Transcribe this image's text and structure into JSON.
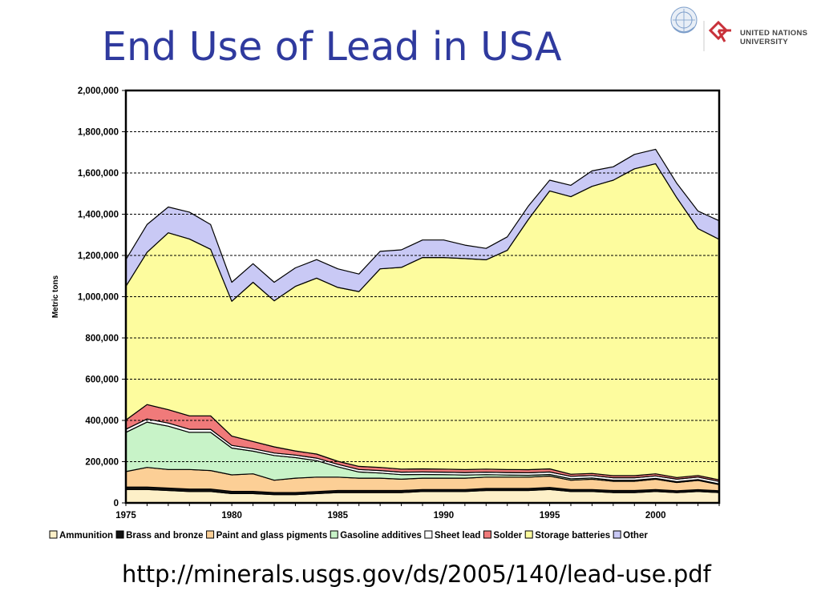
{
  "slide": {
    "title": "End Use of Lead in USA",
    "source_url": "http://minerals.usgs.gov/ds/2005/140/lead-use.pdf",
    "logo": {
      "name_line1": "UNITED NATIONS",
      "name_line2": "UNIVERSITY",
      "emblem": "un-emblem-icon",
      "mark": "unu-mark-icon"
    }
  },
  "chart_data": {
    "type": "area",
    "stacked": true,
    "title": "",
    "xlabel": "",
    "ylabel": "Metric tons",
    "xlim": [
      1975,
      2003
    ],
    "ylim": [
      0,
      2000000
    ],
    "x_ticks": [
      1975,
      1980,
      1985,
      1990,
      1995,
      2000
    ],
    "x_tick_labels": [
      "1975",
      "1980",
      "1985",
      "1990",
      "1995",
      "2000"
    ],
    "y_ticks": [
      0,
      200000,
      400000,
      600000,
      800000,
      1000000,
      1200000,
      1400000,
      1600000,
      1800000,
      2000000
    ],
    "y_tick_labels": [
      "0",
      "200,000",
      "400,000",
      "600,000",
      "800,000",
      "1,000,000",
      "1,200,000",
      "1,400,000",
      "1,600,000",
      "1,800,000",
      "2,000,000"
    ],
    "gridlines": {
      "horizontal": true,
      "style": "dashed"
    },
    "legend_position": "bottom",
    "x": [
      1975,
      1976,
      1977,
      1978,
      1979,
      1980,
      1981,
      1982,
      1983,
      1984,
      1985,
      1986,
      1987,
      1988,
      1989,
      1990,
      1991,
      1992,
      1993,
      1994,
      1995,
      1996,
      1997,
      1998,
      1999,
      2000,
      2001,
      2002,
      2003
    ],
    "series": [
      {
        "name": "Ammunition",
        "color": "#fdf0c8",
        "edge": "#000000",
        "values": [
          65000,
          65000,
          60000,
          55000,
          55000,
          45000,
          45000,
          40000,
          40000,
          45000,
          50000,
          50000,
          50000,
          50000,
          55000,
          55000,
          55000,
          60000,
          60000,
          60000,
          65000,
          55000,
          55000,
          50000,
          50000,
          55000,
          50000,
          55000,
          50000
        ]
      },
      {
        "name": "Brass and bronze",
        "color": "#111111",
        "edge": "#000000",
        "values": [
          12000,
          12000,
          12000,
          12000,
          12000,
          11000,
          11000,
          10000,
          10000,
          10000,
          10000,
          10000,
          10000,
          10000,
          10000,
          10000,
          10000,
          10000,
          10000,
          10000,
          10000,
          10000,
          10000,
          10000,
          10000,
          10000,
          9000,
          9000,
          9000
        ]
      },
      {
        "name": "Paint and glass pigments",
        "color": "#fccf96",
        "edge": "#000000",
        "values": [
          75000,
          95000,
          90000,
          95000,
          90000,
          80000,
          85000,
          60000,
          70000,
          70000,
          65000,
          60000,
          60000,
          55000,
          55000,
          55000,
          55000,
          55000,
          55000,
          55000,
          55000,
          45000,
          50000,
          45000,
          45000,
          50000,
          40000,
          45000,
          30000
        ]
      },
      {
        "name": "Gasoline additives",
        "color": "#c8f3c8",
        "edge": "#000000",
        "values": [
          190000,
          220000,
          210000,
          180000,
          185000,
          130000,
          110000,
          120000,
          100000,
          80000,
          50000,
          30000,
          25000,
          22000,
          18000,
          17000,
          15000,
          12000,
          10000,
          9000,
          8000,
          7000,
          6000,
          5000,
          5000,
          4000,
          4000,
          4000,
          3000
        ]
      },
      {
        "name": "Sheet lead",
        "color": "#ffffff",
        "edge": "#000000",
        "values": [
          15000,
          15000,
          15000,
          15000,
          15000,
          13000,
          12000,
          12000,
          12000,
          12000,
          12000,
          12000,
          12000,
          12000,
          12000,
          12000,
          12000,
          12000,
          12000,
          12000,
          12000,
          12000,
          12000,
          12000,
          12000,
          12000,
          12000,
          12000,
          12000
        ]
      },
      {
        "name": "Solder",
        "color": "#f07a7a",
        "edge": "#000000",
        "values": [
          45000,
          70000,
          65000,
          65000,
          65000,
          45000,
          35000,
          30000,
          20000,
          20000,
          15000,
          15000,
          15000,
          15000,
          15000,
          15000,
          15000,
          15000,
          15000,
          15000,
          15000,
          10000,
          10000,
          10000,
          10000,
          10000,
          8000,
          8000,
          8000
        ]
      },
      {
        "name": "Storage batteries",
        "color": "#fdfc9e",
        "edge": "#000000",
        "values": [
          648000,
          738000,
          858000,
          858000,
          808000,
          654000,
          772000,
          708000,
          798000,
          853000,
          843000,
          848000,
          963000,
          978000,
          1025000,
          1026000,
          1023000,
          1015000,
          1063000,
          1214000,
          1348000,
          1346000,
          1392000,
          1433000,
          1488000,
          1504000,
          1357000,
          1197000,
          1166000
        ]
      },
      {
        "name": "Other",
        "color": "#c9c9f5",
        "edge": "#000000",
        "values": [
          130000,
          135000,
          125000,
          130000,
          120000,
          92000,
          90000,
          90000,
          90000,
          90000,
          90000,
          85000,
          85000,
          85000,
          85000,
          85000,
          65000,
          55000,
          65000,
          65000,
          52000,
          55000,
          75000,
          65000,
          70000,
          70000,
          70000,
          85000,
          90000
        ]
      }
    ]
  }
}
